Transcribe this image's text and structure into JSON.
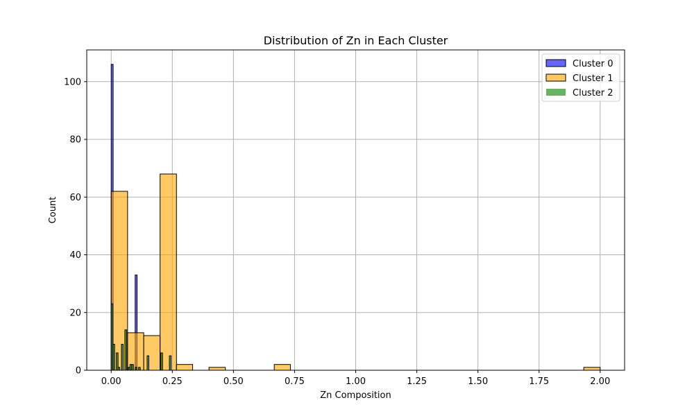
{
  "chart_data": {
    "type": "bar",
    "title": "Distribution of Zn in Each Cluster",
    "xlabel": "Zn Composition",
    "ylabel": "Count",
    "xlim": [
      -0.1,
      2.1
    ],
    "ylim": [
      0,
      111
    ],
    "xticks": [
      "0.00",
      "0.25",
      "0.50",
      "0.75",
      "1.00",
      "1.25",
      "1.50",
      "1.75",
      "2.00"
    ],
    "yticks": [
      "0",
      "20",
      "40",
      "60",
      "80",
      "100"
    ],
    "grid": true,
    "legend_position": "top-right",
    "series": [
      {
        "name": "Cluster 0",
        "color": "#0000ff",
        "bins": [
          {
            "x0": 0.0,
            "x1": 0.008,
            "count": 106
          },
          {
            "x0": 0.098,
            "x1": 0.106,
            "count": 33
          }
        ]
      },
      {
        "name": "Cluster 1",
        "color": "#ffa500",
        "bins": [
          {
            "x0": 0.0,
            "x1": 0.067,
            "count": 62
          },
          {
            "x0": 0.067,
            "x1": 0.133,
            "count": 13
          },
          {
            "x0": 0.133,
            "x1": 0.2,
            "count": 12
          },
          {
            "x0": 0.2,
            "x1": 0.267,
            "count": 68
          },
          {
            "x0": 0.267,
            "x1": 0.333,
            "count": 2
          },
          {
            "x0": 0.4,
            "x1": 0.467,
            "count": 1
          },
          {
            "x0": 0.667,
            "x1": 0.733,
            "count": 2
          },
          {
            "x0": 1.933,
            "x1": 2.0,
            "count": 1
          }
        ]
      },
      {
        "name": "Cluster 2",
        "color": "#008000",
        "bins": [
          {
            "x0": 0.0,
            "x1": 0.007,
            "count": 23
          },
          {
            "x0": 0.007,
            "x1": 0.014,
            "count": 9
          },
          {
            "x0": 0.021,
            "x1": 0.028,
            "count": 6
          },
          {
            "x0": 0.028,
            "x1": 0.035,
            "count": 1
          },
          {
            "x0": 0.042,
            "x1": 0.049,
            "count": 9
          },
          {
            "x0": 0.056,
            "x1": 0.063,
            "count": 14
          },
          {
            "x0": 0.07,
            "x1": 0.077,
            "count": 1
          },
          {
            "x0": 0.077,
            "x1": 0.084,
            "count": 2
          },
          {
            "x0": 0.084,
            "x1": 0.091,
            "count": 2
          },
          {
            "x0": 0.098,
            "x1": 0.105,
            "count": 1
          },
          {
            "x0": 0.112,
            "x1": 0.119,
            "count": 1
          },
          {
            "x0": 0.147,
            "x1": 0.154,
            "count": 5
          },
          {
            "x0": 0.203,
            "x1": 0.21,
            "count": 6
          },
          {
            "x0": 0.238,
            "x1": 0.245,
            "count": 5
          }
        ]
      }
    ]
  }
}
